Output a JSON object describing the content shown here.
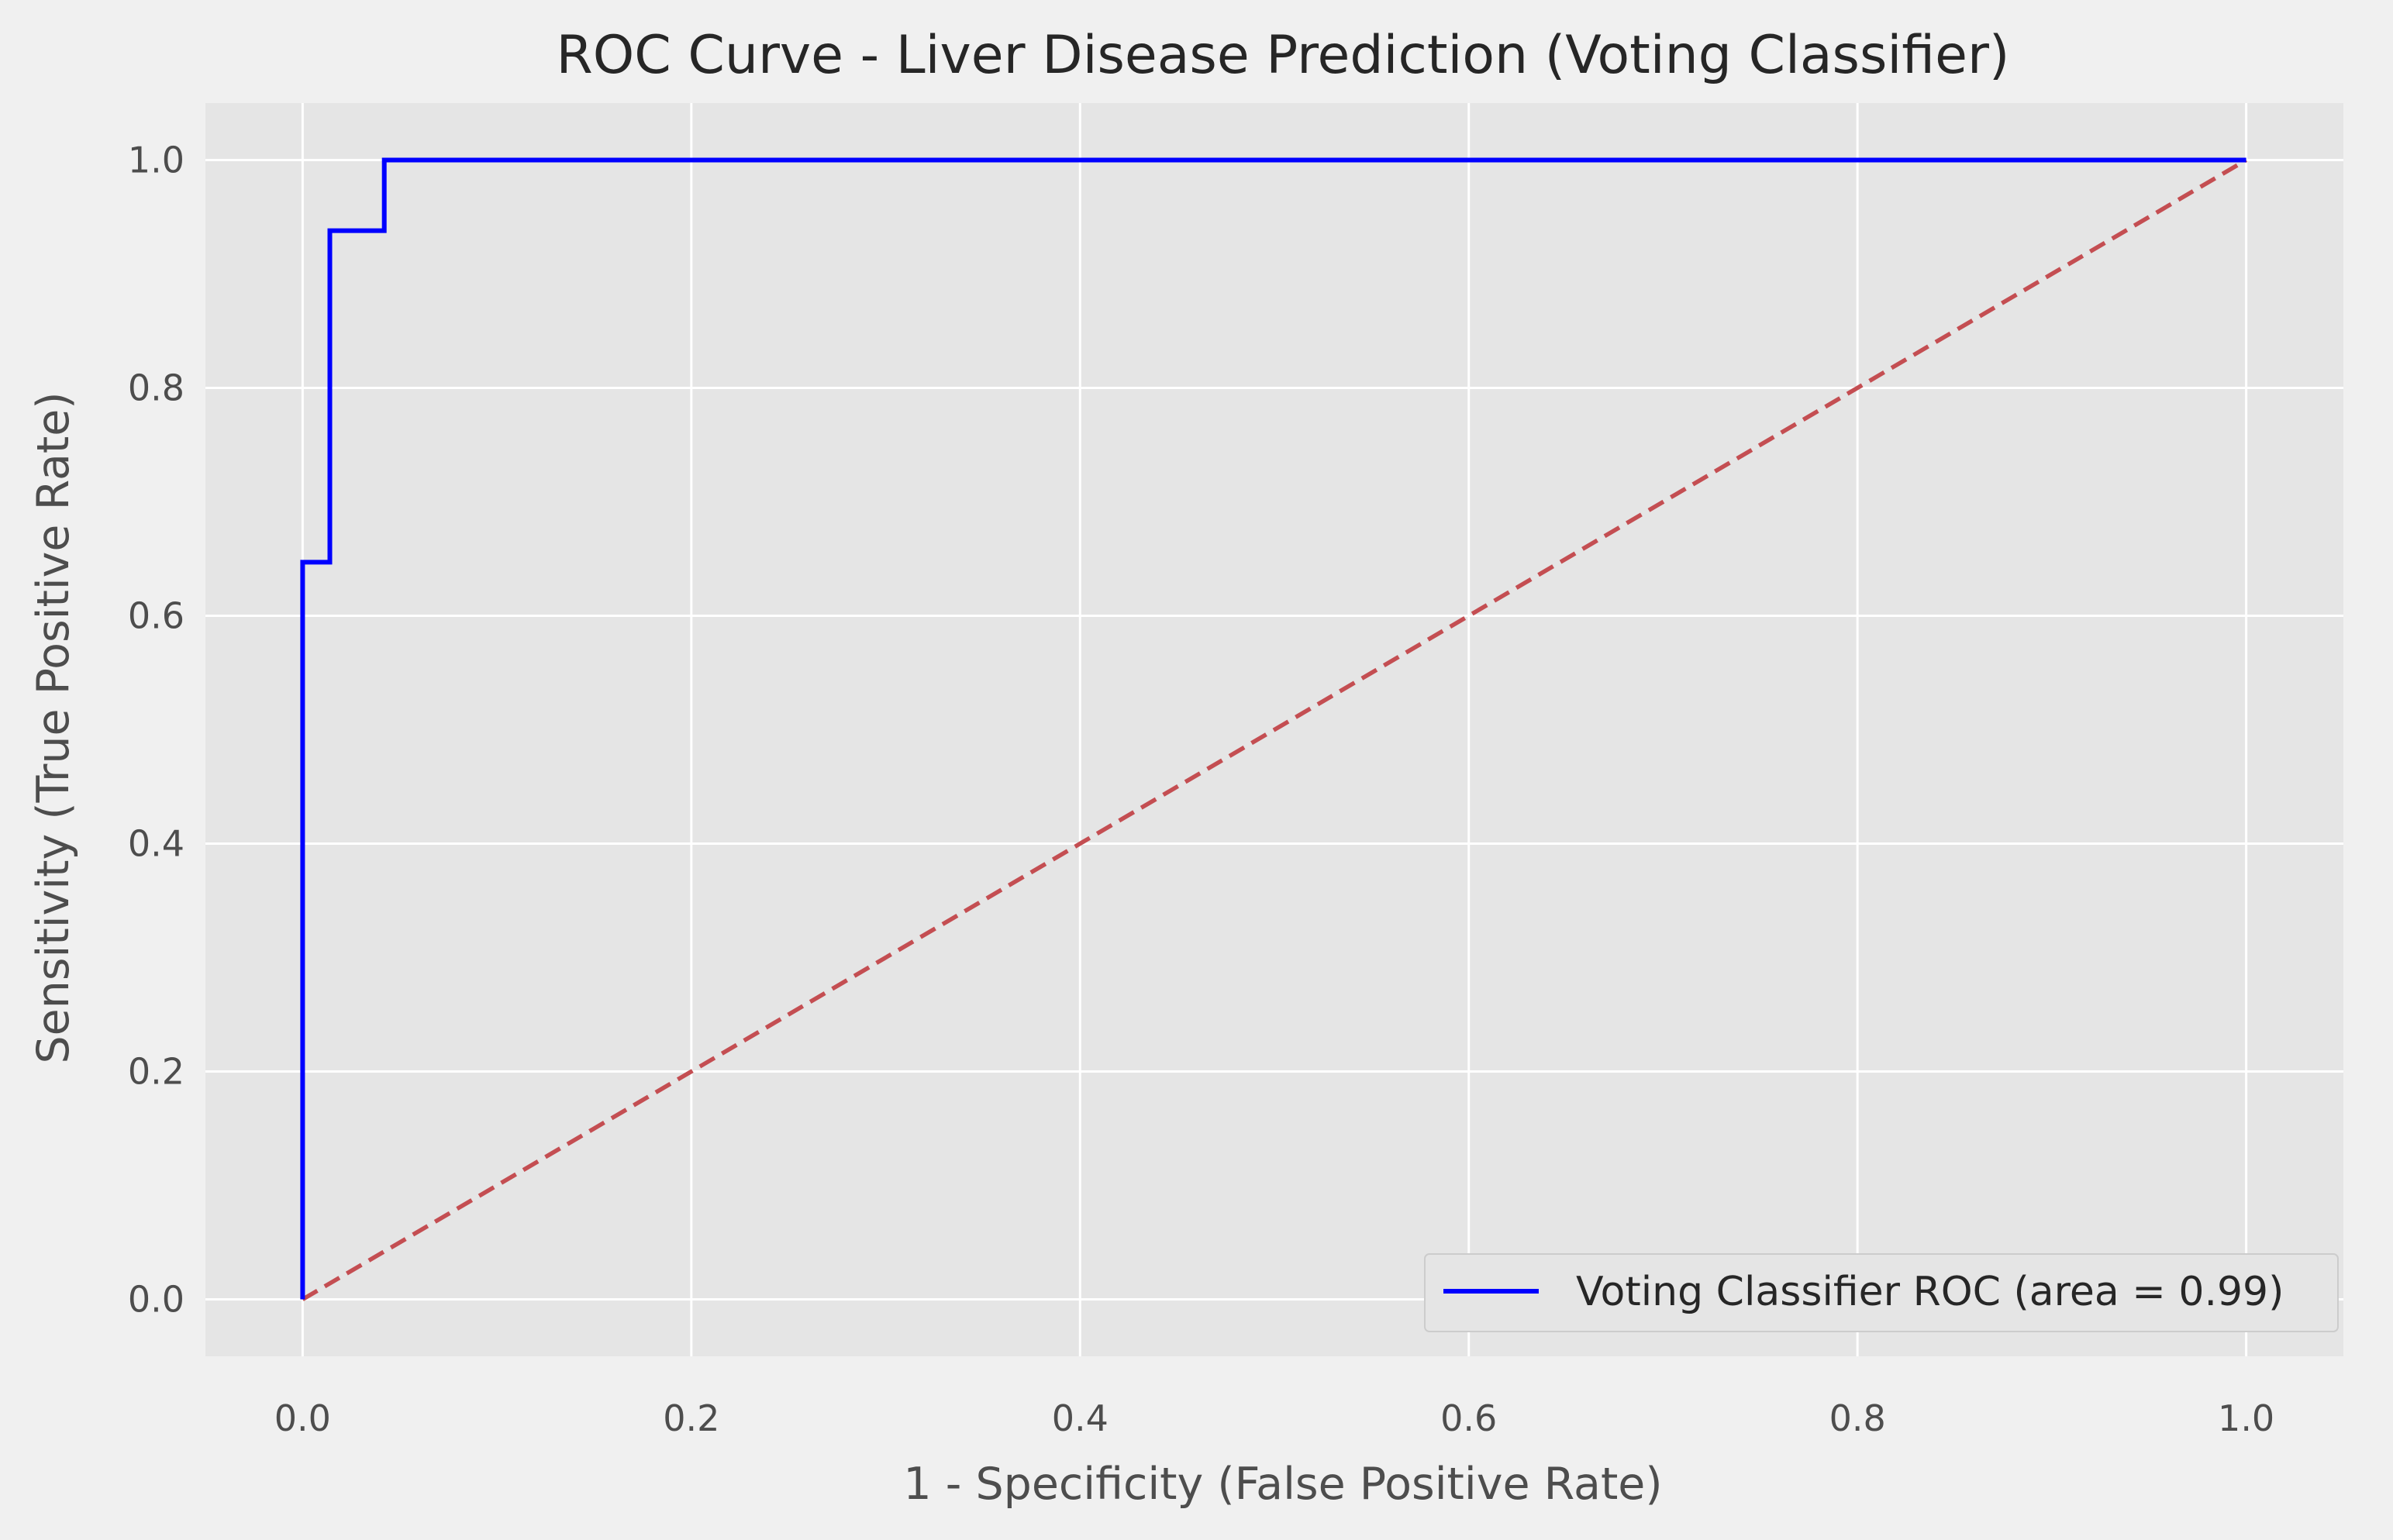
{
  "chart_data": {
    "type": "line",
    "title": "ROC Curve - Liver Disease Prediction (Voting Classifier)",
    "xlabel": "1 - Specificity (False Positive Rate)",
    "ylabel": "Sensitivity (True Positive Rate)",
    "xlim": [
      -0.05,
      1.05
    ],
    "ylim": [
      -0.05,
      1.05
    ],
    "xticks": [
      0.0,
      0.2,
      0.4,
      0.6,
      0.8,
      1.0
    ],
    "xtick_labels": [
      "0.0",
      "0.2",
      "0.4",
      "0.6",
      "0.8",
      "1.0"
    ],
    "yticks": [
      0.0,
      0.2,
      0.4,
      0.6,
      0.8,
      1.0
    ],
    "ytick_labels": [
      "0.0",
      "0.2",
      "0.4",
      "0.6",
      "0.8",
      "1.0"
    ],
    "grid": true,
    "legend_position": "lower right",
    "series": [
      {
        "name": "Voting Classifier ROC (area = 0.99)",
        "color": "#0000ff",
        "style": "solid",
        "x": [
          0.0,
          0.0,
          0.014,
          0.014,
          0.042,
          0.042,
          1.0
        ],
        "y": [
          0.0,
          0.647,
          0.647,
          0.938,
          0.938,
          1.0,
          1.0
        ]
      },
      {
        "color": "#c44e52",
        "style": "dashed",
        "x": [
          0.0,
          1.0
        ],
        "y": [
          0.0,
          1.0
        ]
      }
    ],
    "colors": {
      "figure_background": "#f0f0f0",
      "plot_background": "#e5e5e5",
      "grid": "#ffffff"
    }
  }
}
